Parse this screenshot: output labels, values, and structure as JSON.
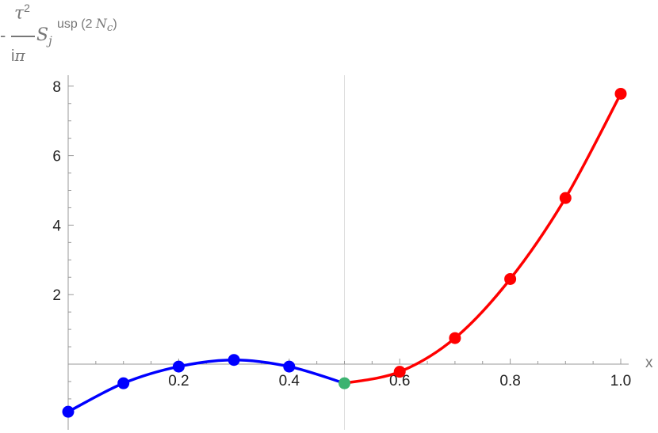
{
  "chart_data": {
    "type": "line",
    "title": "",
    "xlabel": "x",
    "ylabel": {
      "sign": "-",
      "numerator": "τ",
      "numerator_power": "2",
      "denominator_prefix": "i",
      "denominator_symbol": "π",
      "symbol": "S",
      "symbol_subscript": "j",
      "superscript_prefix": "usp (2 ",
      "superscript_var": "N",
      "superscript_sub": "c",
      "superscript_suffix": ")"
    },
    "xlim": [
      0,
      1.0
    ],
    "ylim": [
      -1.9,
      8.5
    ],
    "x_ticks": [
      0.2,
      0.4,
      0.6,
      0.8,
      1.0
    ],
    "x_tick_labels": [
      "0.2",
      "0.4",
      "0.6",
      "0.8",
      "1.0"
    ],
    "y_ticks": [
      2,
      4,
      6,
      8
    ],
    "y_tick_labels": [
      "2",
      "4",
      "6",
      "8"
    ],
    "reference_line_x": 0.5,
    "grid": false,
    "series": [
      {
        "color": "#0000ff",
        "x": [
          0.0,
          0.1,
          0.2,
          0.3,
          0.4,
          0.5
        ],
        "y": [
          -1.37,
          -0.55,
          -0.07,
          0.12,
          -0.07,
          -0.55
        ]
      },
      {
        "color": "#ff0000",
        "x": [
          0.5,
          0.6,
          0.7,
          0.8,
          0.9,
          1.0
        ],
        "y": [
          -0.55,
          -0.22,
          0.75,
          2.45,
          4.78,
          7.78
        ]
      }
    ],
    "marker_colors": {
      "left": "#0000ff",
      "right": "#ff0000",
      "middle": "#3cb371"
    }
  }
}
